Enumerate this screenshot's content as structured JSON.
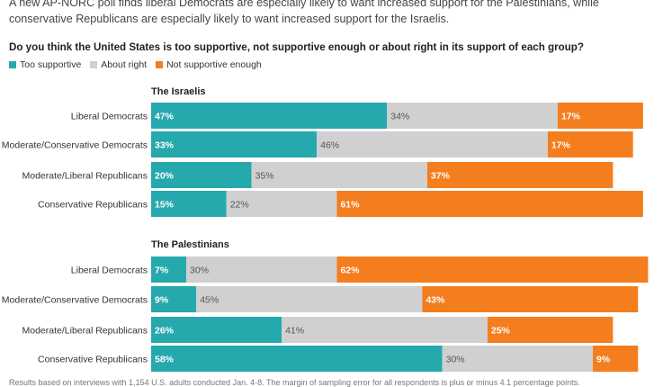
{
  "intro_text": "A new AP-NORC poll finds liberal Democrats are especially likely to want increased support for the Palestinians, while conservative Republicans are especially likely to want increased support for the Israelis.",
  "question": "Do you think the United States is too supportive, not supportive enough or about right in its support of each group?",
  "legend": [
    {
      "label": "Too supportive",
      "color": "#26a9ad"
    },
    {
      "label": "About right",
      "color": "#d0d0d0"
    },
    {
      "label": "Not supportive enough",
      "color": "#f47d1e"
    }
  ],
  "footnote": "Results based on interviews with 1,154 U.S. adults conducted Jan. 4-8. The margin of sampling error for all respondents is plus or minus 4.1 percentage points.",
  "chart_data": {
    "type": "bar",
    "orientation": "horizontal",
    "stacked": true,
    "value_unit": "%",
    "series_names": [
      "Too supportive",
      "About right",
      "Not supportive enough"
    ],
    "colors": [
      "#26a9ad",
      "#d0d0d0",
      "#f47d1e"
    ],
    "groups": [
      {
        "title": "The Israelis",
        "rows": [
          {
            "label": "Liberal Democrats",
            "values": [
              47,
              34,
              17
            ]
          },
          {
            "label": "Moderate/Conservative Democrats",
            "values": [
              33,
              46,
              17
            ]
          },
          {
            "label": "Moderate/Liberal Republicans",
            "values": [
              20,
              35,
              37
            ]
          },
          {
            "label": "Conservative Republicans",
            "values": [
              15,
              22,
              61
            ]
          }
        ]
      },
      {
        "title": "The Palestinians",
        "rows": [
          {
            "label": "Liberal Democrats",
            "values": [
              7,
              30,
              62
            ]
          },
          {
            "label": "Moderate/Conservative Democrats",
            "values": [
              9,
              45,
              43
            ]
          },
          {
            "label": "Moderate/Liberal Republicans",
            "values": [
              26,
              41,
              25
            ]
          },
          {
            "label": "Conservative Republicans",
            "values": [
              58,
              30,
              9
            ]
          }
        ]
      }
    ]
  }
}
